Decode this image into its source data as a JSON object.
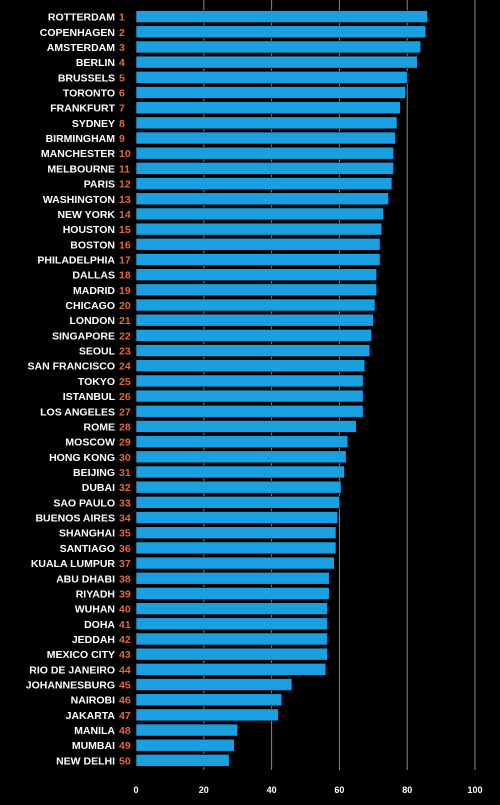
{
  "chart_data": {
    "type": "bar",
    "orientation": "horizontal",
    "title": "",
    "xlabel": "",
    "ylabel": "",
    "xlim": [
      0,
      100
    ],
    "x_ticks": [
      0,
      20,
      40,
      60,
      80,
      100
    ],
    "grid": true,
    "colors": {
      "bar": "#1a9fe0",
      "rank": "#e8673a",
      "text": "#ffffff",
      "background": "#000000",
      "grid": "#8a8a8a"
    },
    "categories": [
      "ROTTERDAM",
      "COPENHAGEN",
      "AMSTERDAM",
      "BERLIN",
      "BRUSSELS",
      "TORONTO",
      "FRANKFURT",
      "SYDNEY",
      "BIRMINGHAM",
      "MANCHESTER",
      "MELBOURNE",
      "PARIS",
      "WASHINGTON",
      "NEW YORK",
      "HOUSTON",
      "BOSTON",
      "PHILADELPHIA",
      "DALLAS",
      "MADRID",
      "CHICAGO",
      "LONDON",
      "SINGAPORE",
      "SEOUL",
      "SAN FRANCISCO",
      "TOKYO",
      "ISTANBUL",
      "LOS ANGELES",
      "ROME",
      "MOSCOW",
      "HONG KONG",
      "BEIJING",
      "DUBAI",
      "SAO PAULO",
      "BUENOS AIRES",
      "SHANGHAI",
      "SANTIAGO",
      "KUALA LUMPUR",
      "ABU DHABI",
      "RIYADH",
      "WUHAN",
      "DOHA",
      "JEDDAH",
      "MEXICO CITY",
      "RIO DE JANEIRO",
      "JOHANNESBURG",
      "NAIROBI",
      "JAKARTA",
      "MANILA",
      "MUMBAI",
      "NEW DELHI"
    ],
    "ranks": [
      "1",
      "2",
      "3",
      "4",
      "5",
      "6",
      "7",
      "8",
      "9",
      "10",
      "11",
      "12",
      "13",
      "14",
      "15",
      "16",
      "17",
      "18",
      "19",
      "20",
      "21",
      "22",
      "23",
      "24",
      "25",
      "26",
      "27",
      "28",
      "29",
      "30",
      "31",
      "32",
      "33",
      "34",
      "35",
      "36",
      "37",
      "38",
      "39",
      "40",
      "41",
      "42",
      "43",
      "44",
      "45",
      "46",
      "47",
      "48",
      "49",
      "50"
    ],
    "values": [
      86,
      85.5,
      84,
      83,
      80,
      79.5,
      78,
      77,
      76.5,
      76,
      76,
      75.5,
      74.5,
      73,
      72.5,
      72,
      72,
      71,
      71,
      70.5,
      70,
      69.5,
      69,
      67.5,
      67,
      67,
      67,
      65,
      62.5,
      62,
      61.5,
      60.5,
      60,
      59.5,
      59,
      59,
      58.5,
      57,
      57,
      56.5,
      56.5,
      56.5,
      56.5,
      56,
      46,
      43,
      42,
      30,
      29,
      27.5
    ]
  }
}
